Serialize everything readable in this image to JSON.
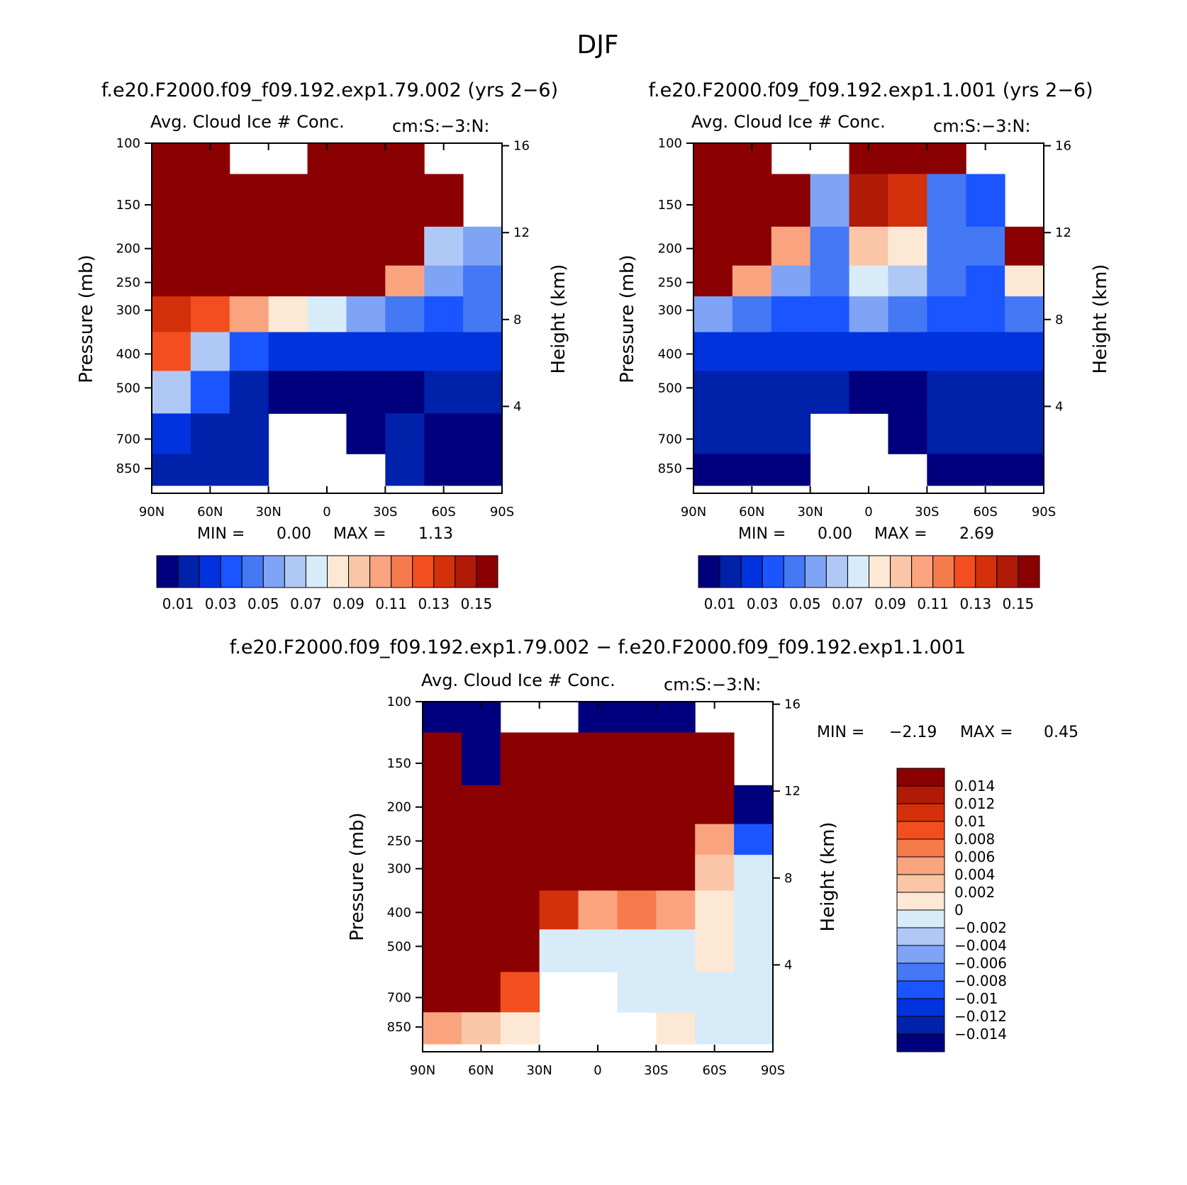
{
  "figure": {
    "title": "DJF",
    "panel_a_title": "f.e20.F2000.f09_f09.192.exp1.79.002 (yrs 2−6)",
    "panel_b_title": "f.e20.F2000.f09_f09.192.exp1.1.001 (yrs 2−6)",
    "diff_title": "f.e20.F2000.f09_f09.192.exp1.79.002 − f.e20.F2000.f09_f09.192.exp1.1.001"
  },
  "colors": {
    "seq": [
      "#00007f",
      "#0022aa",
      "#0033dd",
      "#1a55ff",
      "#4478f5",
      "#7fa4f5",
      "#b0c8f5",
      "#d8ebf8",
      "#fde8d5",
      "#fbc6a8",
      "#f9a47f",
      "#f67b4c",
      "#f24e20",
      "#d5300c",
      "#b01a07",
      "#8b0000"
    ],
    "diff": [
      "#8b0000",
      "#b01a07",
      "#d5300c",
      "#f24e20",
      "#f67b4c",
      "#f9a47f",
      "#fbc6a8",
      "#fde8d5",
      "#d8ebf8",
      "#b0c8f5",
      "#7fa4f5",
      "#4478f5",
      "#1a55ff",
      "#0033dd",
      "#0022aa",
      "#00007f"
    ]
  },
  "chart_data": [
    {
      "type": "heatmap",
      "id": "panel_a",
      "title": "f.e20.F2000.f09_f09.192.exp1.79.002 (yrs 2−6)",
      "subtitle_left": "Avg. Cloud Ice # Conc.",
      "subtitle_right": "cm:S:−3:N:",
      "xlabel": "",
      "ylabel": "Pressure (mb)",
      "ylabel_right": "Height (km)",
      "x_ticks": [
        "90N",
        "60N",
        "30N",
        "0",
        "30S",
        "60S",
        "90S"
      ],
      "y_ticks": [
        "100",
        "150",
        "200",
        "250",
        "300",
        "400",
        "500",
        "700",
        "850"
      ],
      "y_ticks_right": [
        "16",
        "12",
        "8",
        "4"
      ],
      "stats": {
        "min_label": "MIN =",
        "min": "0.00",
        "max_label": "MAX =",
        "max": "1.13"
      },
      "colorbar_labels": [
        "0.01",
        "0.03",
        "0.05",
        "0.07",
        "0.09",
        "0.11",
        "0.13",
        "0.15"
      ],
      "pressure_levels": [
        100,
        150,
        200,
        250,
        300,
        400,
        500,
        700,
        850
      ],
      "latitudes": [
        90,
        60,
        30,
        0,
        -30,
        -60,
        -90
      ],
      "values": [
        [
          0.2,
          0.2,
          null,
          null,
          0.2,
          0.2,
          0.2,
          null,
          null
        ],
        [
          0.2,
          0.2,
          0.2,
          0.2,
          0.2,
          0.2,
          0.2,
          0.2,
          null
        ],
        [
          0.2,
          0.2,
          0.2,
          0.2,
          0.2,
          0.2,
          0.2,
          0.06,
          0.05
        ],
        [
          0.2,
          0.2,
          0.2,
          0.2,
          0.2,
          0.2,
          0.1,
          0.05,
          0.04
        ],
        [
          0.13,
          0.12,
          0.1,
          0.08,
          0.07,
          0.05,
          0.04,
          0.03,
          0.04
        ],
        [
          0.12,
          0.06,
          0.03,
          0.02,
          0.02,
          0.02,
          0.02,
          0.02,
          0.02
        ],
        [
          0.06,
          0.03,
          0.01,
          0.005,
          0.005,
          0.005,
          0.005,
          0.01,
          0.01
        ],
        [
          0.02,
          0.015,
          0.01,
          null,
          null,
          0.005,
          0.01,
          0.005,
          0.005
        ],
        [
          0.01,
          0.01,
          0.01,
          null,
          null,
          null,
          0.01,
          0.005,
          0.005
        ]
      ]
    },
    {
      "type": "heatmap",
      "id": "panel_b",
      "title": "f.e20.F2000.f09_f09.192.exp1.1.001 (yrs 2−6)",
      "subtitle_left": "Avg. Cloud Ice # Conc.",
      "subtitle_right": "cm:S:−3:N:",
      "xlabel": "",
      "ylabel": "Pressure (mb)",
      "ylabel_right": "Height (km)",
      "x_ticks": [
        "90N",
        "60N",
        "30N",
        "0",
        "30S",
        "60S",
        "90S"
      ],
      "y_ticks": [
        "100",
        "150",
        "200",
        "250",
        "300",
        "400",
        "500",
        "700",
        "850"
      ],
      "y_ticks_right": [
        "16",
        "12",
        "8",
        "4"
      ],
      "stats": {
        "min_label": "MIN =",
        "min": "0.00",
        "max_label": "MAX =",
        "max": "2.69"
      },
      "colorbar_labels": [
        "0.01",
        "0.03",
        "0.05",
        "0.07",
        "0.09",
        "0.11",
        "0.13",
        "0.15"
      ],
      "pressure_levels": [
        100,
        150,
        200,
        250,
        300,
        400,
        500,
        700,
        850
      ],
      "latitudes": [
        90,
        60,
        30,
        0,
        -30,
        -60,
        -90
      ],
      "values": [
        [
          0.2,
          0.2,
          null,
          null,
          0.2,
          0.2,
          0.2,
          null,
          null
        ],
        [
          0.2,
          0.2,
          0.2,
          0.05,
          0.14,
          0.13,
          0.04,
          0.03,
          null
        ],
        [
          0.2,
          0.2,
          0.1,
          0.04,
          0.09,
          0.08,
          0.04,
          0.04,
          0.2
        ],
        [
          0.2,
          0.1,
          0.05,
          0.04,
          0.07,
          0.06,
          0.04,
          0.03,
          0.08
        ],
        [
          0.05,
          0.04,
          0.03,
          0.03,
          0.05,
          0.04,
          0.03,
          0.03,
          0.04
        ],
        [
          0.02,
          0.02,
          0.02,
          0.02,
          0.02,
          0.02,
          0.02,
          0.02,
          0.02
        ],
        [
          0.01,
          0.01,
          0.01,
          0.01,
          0.005,
          0.005,
          0.01,
          0.01,
          0.01
        ],
        [
          0.01,
          0.01,
          0.01,
          null,
          null,
          0.005,
          0.01,
          0.01,
          0.01
        ],
        [
          0.005,
          0.005,
          0.005,
          null,
          null,
          null,
          0.005,
          0.005,
          0.005
        ]
      ]
    },
    {
      "type": "heatmap",
      "id": "panel_diff",
      "title": "f.e20.F2000.f09_f09.192.exp1.79.002 − f.e20.F2000.f09_f09.192.exp1.1.001",
      "subtitle_left": "Avg. Cloud Ice # Conc.",
      "subtitle_right": "cm:S:−3:N:",
      "xlabel": "",
      "ylabel": "Pressure (mb)",
      "ylabel_right": "Height (km)",
      "x_ticks": [
        "90N",
        "60N",
        "30N",
        "0",
        "30S",
        "60S",
        "90S"
      ],
      "y_ticks": [
        "100",
        "150",
        "200",
        "250",
        "300",
        "400",
        "500",
        "700",
        "850"
      ],
      "y_ticks_right": [
        "16",
        "12",
        "8",
        "4"
      ],
      "stats": {
        "min_label": "MIN =",
        "min": "−2.19",
        "max_label": "MAX =",
        "max": "0.45"
      },
      "colorbar_labels": [
        "0.014",
        "0.012",
        "0.01",
        "0.008",
        "0.006",
        "0.004",
        "0.002",
        "0",
        "−0.002",
        "−0.004",
        "−0.006",
        "−0.008",
        "−0.01",
        "−0.012",
        "−0.014"
      ],
      "pressure_levels": [
        100,
        150,
        200,
        250,
        300,
        400,
        500,
        700,
        850
      ],
      "latitudes": [
        90,
        60,
        30,
        0,
        -30,
        -60,
        -90
      ],
      "values": [
        [
          -0.02,
          -0.02,
          null,
          null,
          -0.02,
          -0.02,
          -0.02,
          null,
          null
        ],
        [
          0.02,
          -0.02,
          0.02,
          0.02,
          0.02,
          0.02,
          0.02,
          0.02,
          null
        ],
        [
          0.02,
          0.02,
          0.02,
          0.02,
          0.02,
          0.02,
          0.02,
          0.02,
          -0.02
        ],
        [
          0.02,
          0.02,
          0.02,
          0.02,
          0.02,
          0.02,
          0.02,
          0.004,
          -0.01
        ],
        [
          0.02,
          0.02,
          0.02,
          0.02,
          0.02,
          0.02,
          0.02,
          0.002,
          -0.002
        ],
        [
          0.02,
          0.02,
          0.02,
          0.01,
          0.004,
          0.006,
          0.004,
          0.001,
          -0.001
        ],
        [
          0.02,
          0.02,
          0.02,
          -0.001,
          -0.002,
          -0.001,
          -0.001,
          0.001,
          -0.001
        ],
        [
          0.02,
          0.02,
          0.008,
          null,
          null,
          -0.002,
          -0.001,
          -0.001,
          -0.001
        ],
        [
          0.004,
          0.003,
          0.001,
          null,
          null,
          null,
          0.001,
          -0.001,
          -0.001
        ]
      ]
    }
  ]
}
